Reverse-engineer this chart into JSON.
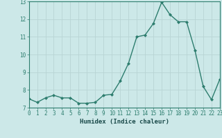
{
  "x": [
    0,
    1,
    2,
    3,
    4,
    5,
    6,
    7,
    8,
    9,
    10,
    11,
    12,
    13,
    14,
    15,
    16,
    17,
    18,
    19,
    20,
    21,
    22,
    23
  ],
  "y": [
    7.5,
    7.3,
    7.55,
    7.7,
    7.55,
    7.55,
    7.25,
    7.25,
    7.3,
    7.7,
    7.75,
    8.5,
    9.5,
    11.0,
    11.1,
    11.75,
    12.95,
    12.25,
    11.85,
    11.85,
    10.25,
    8.2,
    7.45,
    8.6
  ],
  "xlabel": "Humidex (Indice chaleur)",
  "ylim": [
    7,
    13
  ],
  "xlim": [
    0,
    23
  ],
  "yticks": [
    7,
    8,
    9,
    10,
    11,
    12,
    13
  ],
  "xticks": [
    0,
    1,
    2,
    3,
    4,
    5,
    6,
    7,
    8,
    9,
    10,
    11,
    12,
    13,
    14,
    15,
    16,
    17,
    18,
    19,
    20,
    21,
    22,
    23
  ],
  "line_color": "#2d7d6e",
  "marker_color": "#2d7d6e",
  "bg_color": "#cce8e8",
  "grid_color": "#b8d4d4",
  "tick_fontsize": 5.5,
  "xlabel_fontsize": 6.5
}
